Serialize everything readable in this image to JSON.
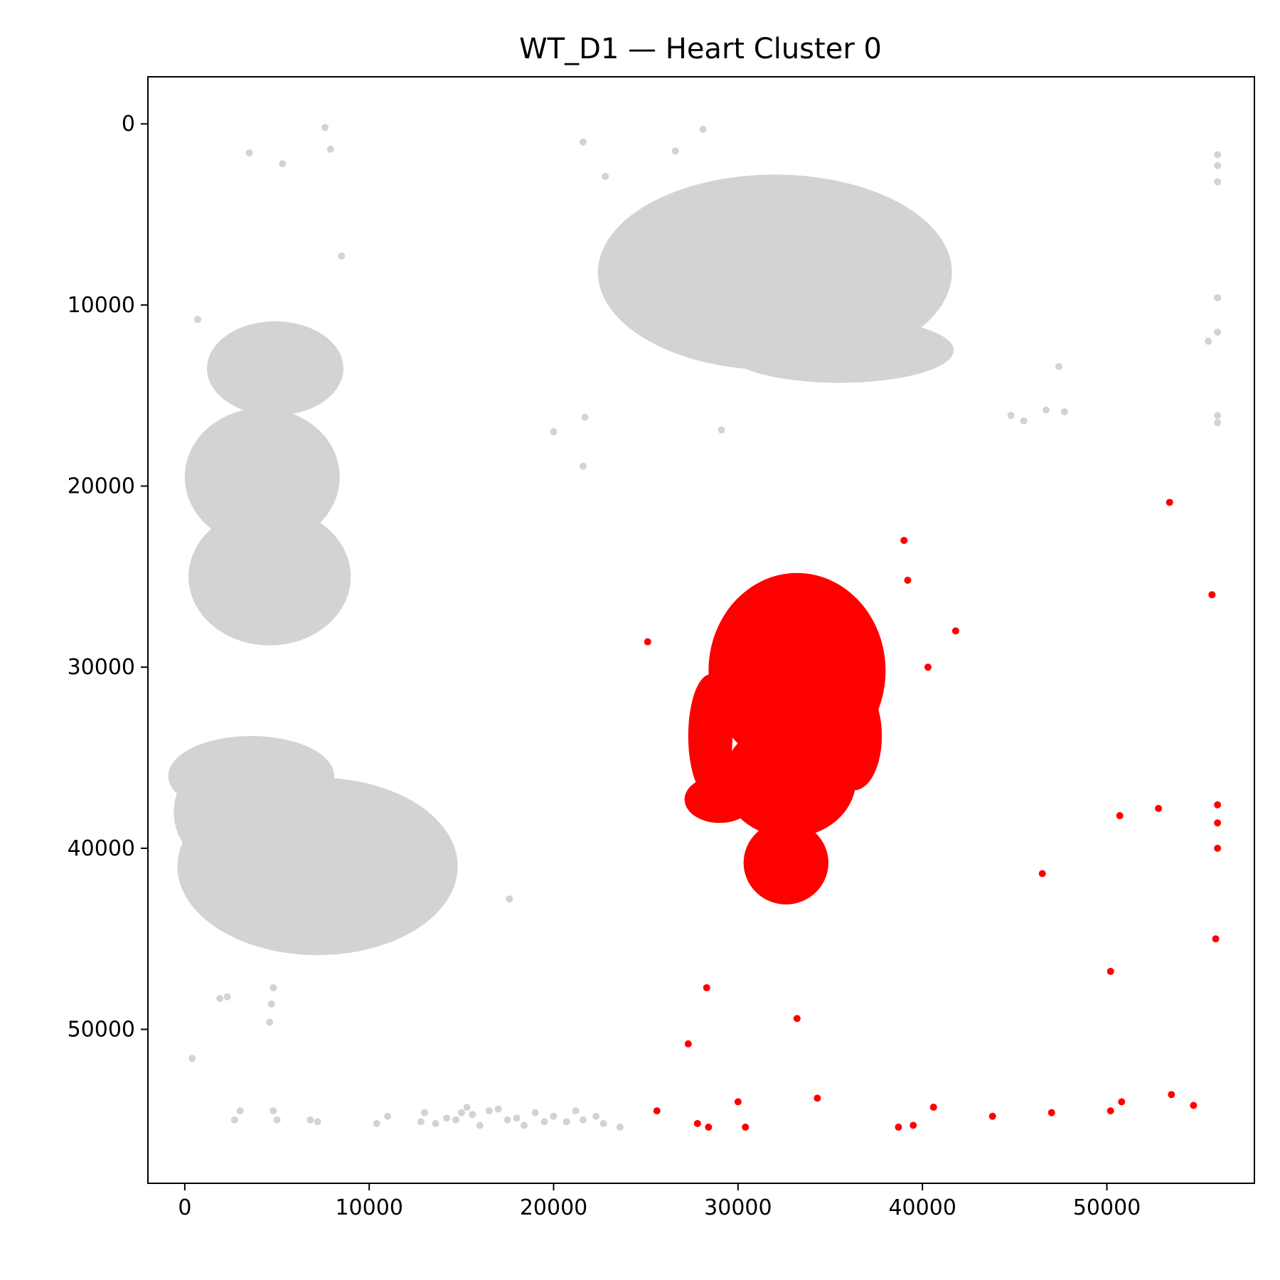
{
  "chart_data": {
    "type": "scatter",
    "title": "WT_D1 — Heart Cluster 0",
    "xlabel": "",
    "ylabel": "",
    "xlim": [
      -2000,
      58000
    ],
    "ylim": [
      58500,
      -2600
    ],
    "y_inverted": true,
    "grid": false,
    "legend": "none",
    "x_ticks": [
      0,
      10000,
      20000,
      30000,
      40000,
      50000
    ],
    "y_ticks": [
      0,
      10000,
      20000,
      30000,
      40000,
      50000
    ],
    "colors": {
      "background_points": "#d3d3d3",
      "highlight_points": "#ff0000"
    },
    "series": [
      {
        "color": "#d3d3d3",
        "role": "background",
        "regions": [
          {
            "center": [
              32000,
              8200
            ],
            "radii": [
              9600,
              5400
            ]
          },
          {
            "center": [
              35500,
              12500
            ],
            "radii": [
              6200,
              1800
            ]
          },
          {
            "center": [
              4900,
              13500
            ],
            "radii": [
              3700,
              2600
            ]
          },
          {
            "center": [
              4200,
              19500
            ],
            "radii": [
              4200,
              3800
            ]
          },
          {
            "center": [
              4600,
              25000
            ],
            "radii": [
              4400,
              3800
            ]
          },
          {
            "center": [
              3600,
              36000
            ],
            "radii": [
              4500,
              2200
            ]
          },
          {
            "center": [
              7200,
              41000
            ],
            "radii": [
              7600,
              4900
            ]
          },
          {
            "center": [
              2600,
              38000
            ],
            "radii": [
              3200,
              3200
            ]
          }
        ],
        "points": [
          [
            7600,
            200
          ],
          [
            7900,
            1400
          ],
          [
            3500,
            1600
          ],
          [
            5300,
            2200
          ],
          [
            8500,
            7300
          ],
          [
            700,
            10800
          ],
          [
            21600,
            1000
          ],
          [
            22800,
            2900
          ],
          [
            26600,
            1500
          ],
          [
            28100,
            300
          ],
          [
            21700,
            16200
          ],
          [
            20000,
            17000
          ],
          [
            29100,
            16900
          ],
          [
            21600,
            18900
          ],
          [
            17600,
            42800
          ],
          [
            1900,
            48300
          ],
          [
            2300,
            48200
          ],
          [
            4600,
            49600
          ],
          [
            4800,
            47700
          ],
          [
            4700,
            48600
          ],
          [
            400,
            51600
          ],
          [
            47400,
            13400
          ],
          [
            44800,
            16100
          ],
          [
            45500,
            16400
          ],
          [
            46700,
            15800
          ],
          [
            47700,
            15900
          ],
          [
            56000,
            1700
          ],
          [
            56000,
            2300
          ],
          [
            56000,
            3200
          ],
          [
            56000,
            9600
          ],
          [
            56000,
            11500
          ],
          [
            55500,
            12000
          ],
          [
            56000,
            16100
          ],
          [
            56000,
            16500
          ],
          [
            2700,
            55000
          ],
          [
            3000,
            54500
          ],
          [
            4800,
            54500
          ],
          [
            5000,
            55000
          ],
          [
            6800,
            55000
          ],
          [
            7200,
            55100
          ],
          [
            10400,
            55200
          ],
          [
            11000,
            54800
          ],
          [
            12800,
            55100
          ],
          [
            13000,
            54600
          ],
          [
            13600,
            55200
          ],
          [
            14200,
            54900
          ],
          [
            14700,
            55000
          ],
          [
            15000,
            54600
          ],
          [
            15300,
            54300
          ],
          [
            15600,
            54700
          ],
          [
            16000,
            55300
          ],
          [
            16500,
            54500
          ],
          [
            17000,
            54400
          ],
          [
            17500,
            55000
          ],
          [
            18000,
            54900
          ],
          [
            18400,
            55300
          ],
          [
            19000,
            54600
          ],
          [
            19500,
            55100
          ],
          [
            20000,
            54800
          ],
          [
            20700,
            55100
          ],
          [
            21200,
            54500
          ],
          [
            21600,
            55000
          ],
          [
            22300,
            54800
          ],
          [
            22700,
            55200
          ],
          [
            23600,
            55400
          ]
        ]
      },
      {
        "color": "#ff0000",
        "role": "cluster",
        "regions": [
          {
            "center": [
              33200,
              30200
            ],
            "radii": [
              4800,
              5400
            ]
          },
          {
            "center": [
              32800,
              36200
            ],
            "radii": [
              3600,
              3200
            ]
          },
          {
            "center": [
              32600,
              40800
            ],
            "radii": [
              2300,
              2300
            ]
          },
          {
            "center": [
              28500,
              33800
            ],
            "radii": [
              1200,
              3400
            ]
          },
          {
            "center": [
              29000,
              37300
            ],
            "radii": [
              1900,
              1300
            ]
          },
          {
            "center": [
              36300,
              33800
            ],
            "radii": [
              1500,
              3000
            ]
          }
        ],
        "points": [
          [
            25100,
            28600
          ],
          [
            39000,
            23000
          ],
          [
            39200,
            25200
          ],
          [
            41800,
            28000
          ],
          [
            40300,
            30000
          ],
          [
            53400,
            20900
          ],
          [
            55700,
            26000
          ],
          [
            28300,
            47700
          ],
          [
            33200,
            49400
          ],
          [
            27300,
            50800
          ],
          [
            25600,
            54500
          ],
          [
            27800,
            55200
          ],
          [
            28400,
            55400
          ],
          [
            30000,
            54000
          ],
          [
            30400,
            55400
          ],
          [
            34300,
            53800
          ],
          [
            38700,
            55400
          ],
          [
            39500,
            55300
          ],
          [
            40600,
            54300
          ],
          [
            43800,
            54800
          ],
          [
            46500,
            41400
          ],
          [
            47000,
            54600
          ],
          [
            50200,
            46800
          ],
          [
            50200,
            54500
          ],
          [
            50800,
            54000
          ],
          [
            50700,
            38200
          ],
          [
            52800,
            37800
          ],
          [
            53500,
            53600
          ],
          [
            54700,
            54200
          ],
          [
            56000,
            37600
          ],
          [
            56000,
            38600
          ],
          [
            56000,
            40000
          ],
          [
            55900,
            45000
          ]
        ]
      }
    ]
  }
}
